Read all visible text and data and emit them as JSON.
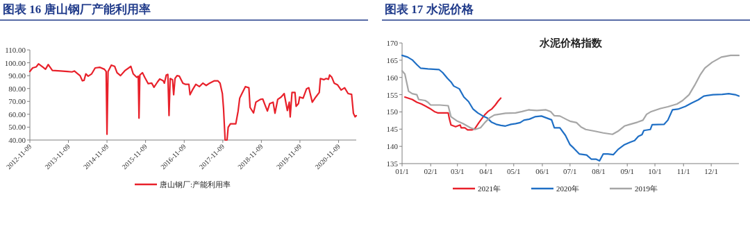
{
  "chart_data": [
    {
      "type": "line",
      "title": "图表 16  唐山钢厂产能利用率",
      "legend": "bottom",
      "grid": false,
      "line_style": "solid",
      "x": [
        "2012-11-09",
        "2012-12-05",
        "2013-01-08",
        "2013-01-30",
        "2013-03-15",
        "2013-04-06",
        "2013-05-02",
        "2013-06-10",
        "2013-08-26",
        "2013-10-30",
        "2013-12-13",
        "2014-01-04",
        "2014-02-06",
        "2014-02-27",
        "2014-03-21",
        "2014-04-06",
        "2014-04-23",
        "2014-05-15",
        "2014-06-17",
        "2014-07-20",
        "2014-09-01",
        "2014-10-15",
        "2014-11-01",
        "2014-11-09",
        "2014-11-19",
        "2014-12-20",
        "2015-01-21",
        "2015-02-12",
        "2015-03-17",
        "2015-04-30",
        "2015-06-23",
        "2015-07-15",
        "2015-08-17",
        "2015-09-01",
        "2015-09-08",
        "2015-09-16",
        "2015-10-11",
        "2015-11-01",
        "2015-12-04",
        "2016-01-06",
        "2016-01-28",
        "2016-03-01",
        "2016-03-22",
        "2016-04-24",
        "2016-05-05",
        "2016-05-23",
        "2016-06-07",
        "2016-06-18",
        "2016-06-29",
        "2016-07-21",
        "2016-08-01",
        "2016-08-14",
        "2016-09-02",
        "2016-09-24",
        "2016-10-27",
        "2016-11-18",
        "2016-12-23",
        "2017-01-03",
        "2017-01-25",
        "2017-02-27",
        "2017-04-01",
        "2017-05-04",
        "2017-06-05",
        "2017-07-08",
        "2017-08-21",
        "2017-09-23",
        "2017-10-14",
        "2017-11-05",
        "2017-11-16",
        "2017-12-01",
        "2017-12-19",
        "2017-12-30",
        "2018-01-20",
        "2018-03-12",
        "2018-04-03",
        "2018-04-18",
        "2018-05-09",
        "2018-06-11",
        "2018-07-14",
        "2018-07-25",
        "2018-08-27",
        "2018-09-18",
        "2018-10-31",
        "2018-11-22",
        "2018-12-14",
        "2019-01-05",
        "2019-01-27",
        "2019-02-28",
        "2019-03-18",
        "2019-04-13",
        "2019-05-15",
        "2019-06-13",
        "2019-07-13",
        "2019-07-31",
        "2019-08-09",
        "2019-08-26",
        "2019-09-23",
        "2019-10-04",
        "2019-10-26",
        "2019-11-06",
        "2019-12-09",
        "2020-01-10",
        "2020-02-01",
        "2020-03-05",
        "2020-04-07",
        "2020-05-10",
        "2020-05-21",
        "2020-06-22",
        "2020-07-14",
        "2020-08-05",
        "2020-08-16",
        "2020-09-06",
        "2020-09-28",
        "2020-10-31",
        "2020-12-03",
        "2021-01-05",
        "2021-02-07",
        "2021-03-12",
        "2021-03-29",
        "2021-04-14",
        "2021-04-25"
      ],
      "series": [
        {
          "name": "唐山钢厂:产能利用率",
          "color": "#e8202a",
          "values": [
            93.2,
            96,
            96.8,
            99.2,
            96.5,
            95,
            98.6,
            94.1,
            93.6,
            93.2,
            92.9,
            93.6,
            91.4,
            90,
            86,
            86.4,
            91.4,
            89.6,
            91.4,
            96,
            96.5,
            95,
            93.2,
            44.5,
            93.2,
            98.2,
            97.2,
            92.3,
            90,
            94.1,
            97.2,
            91.4,
            88.7,
            89.6,
            57,
            90.5,
            92.3,
            88.7,
            83.8,
            84.2,
            81,
            85.1,
            87.4,
            86,
            84.2,
            90.5,
            91,
            59,
            87.8,
            86.9,
            75.2,
            87.8,
            90,
            89.6,
            84.2,
            83.3,
            83.3,
            75.2,
            78.8,
            83.3,
            81.5,
            84.2,
            82.4,
            84.2,
            86,
            86,
            84.2,
            76.1,
            64.4,
            40,
            40,
            49.9,
            52.6,
            52.6,
            62.5,
            72.5,
            76.1,
            81.5,
            80.6,
            65.3,
            61.1,
            69.4,
            71.6,
            71.9,
            67.1,
            62.5,
            68.3,
            69.4,
            60.8,
            71.6,
            73.4,
            76.1,
            62.9,
            69.4,
            58,
            77,
            77,
            66.2,
            68.3,
            73.4,
            72.5,
            79.7,
            80.6,
            69.4,
            73.4,
            77,
            87.8,
            86.9,
            87.8,
            87.2,
            90.5,
            88.7,
            84.2,
            82.8,
            78.8,
            80.6,
            76.1,
            75.5,
            60.8,
            58,
            58.9
          ]
        }
      ],
      "xlim": [
        "2012-11-09",
        "2021-04-25"
      ],
      "xticks": [
        "2012-11-09",
        "2013-11-09",
        "2014-11-09",
        "2015-11-09",
        "2016-11-09",
        "2017-11-09",
        "2018-11-09",
        "2019-11-09",
        "2020-11-09"
      ],
      "ylim": [
        40,
        110
      ],
      "yticks": [
        {
          "value": 40,
          "label": "40.00"
        },
        {
          "value": 50,
          "label": "50.00"
        },
        {
          "value": 60,
          "label": "60.00"
        },
        {
          "value": 70,
          "label": "70.00"
        },
        {
          "value": 80,
          "label": "80.00"
        },
        {
          "value": 90,
          "label": "90.00"
        },
        {
          "value": 100,
          "label": "100.00"
        },
        {
          "value": 110,
          "label": "110.00"
        }
      ]
    },
    {
      "type": "line",
      "title": "图表 17  水泥价格",
      "subtitle": "水泥价格指数",
      "legend": "bottom",
      "grid": false,
      "line_style": "solid",
      "series": [
        {
          "name": "2021年",
          "color": "#e8202a",
          "x": [
            "--01-04",
            "--01-12",
            "--01-17",
            "--01-22",
            "--01-27",
            "--01-31",
            "--02-05",
            "--02-09",
            "--02-20",
            "--02-21",
            "--02-23",
            "--02-28",
            "--03-04",
            "--03-05",
            "--03-09",
            "--03-12",
            "--03-17",
            "--03-20",
            "--03-24",
            "--03-27",
            "--03-31",
            "--04-03",
            "--04-07",
            "--04-11",
            "--04-14",
            "--04-17"
          ],
          "values": [
            154.3,
            153.6,
            152.8,
            152.3,
            151.6,
            151,
            150.1,
            149.7,
            149.7,
            148.3,
            146.2,
            145.7,
            146.2,
            145.4,
            145.4,
            144.8,
            144.8,
            145.2,
            146.8,
            147.9,
            149.3,
            150.1,
            150.8,
            152,
            153.1,
            154
          ]
        },
        {
          "name": "2020年",
          "color": "#1f6fc5",
          "x": [
            "--01-01",
            "--01-07",
            "--01-12",
            "--01-17",
            "--01-21",
            "--01-29",
            "--02-10",
            "--02-14",
            "--02-19",
            "--02-23",
            "--02-26",
            "--03-03",
            "--03-08",
            "--03-13",
            "--03-18",
            "--03-23",
            "--03-28",
            "--04-02",
            "--04-07",
            "--04-12",
            "--04-17",
            "--04-22",
            "--04-28",
            "--05-03",
            "--05-08",
            "--05-12",
            "--05-18",
            "--05-24",
            "--05-31",
            "--06-05",
            "--06-11",
            "--06-14",
            "--06-20",
            "--06-26",
            "--07-01",
            "--07-05",
            "--07-11",
            "--07-19",
            "--07-24",
            "--07-29",
            "--08-02",
            "--08-06",
            "--08-11",
            "--08-17",
            "--08-22",
            "--08-29",
            "--09-04",
            "--09-09",
            "--09-13",
            "--09-17",
            "--09-19",
            "--09-26",
            "--09-28",
            "--10-11",
            "--10-15",
            "--10-20",
            "--10-26",
            "--11-03",
            "--11-10",
            "--11-17",
            "--11-23",
            "--12-03",
            "--12-13",
            "--12-20",
            "--12-27",
            "--12-31"
          ],
          "values": [
            166.4,
            165.9,
            165.1,
            163.7,
            162.7,
            162.5,
            162.3,
            161.4,
            159.8,
            158.7,
            157.5,
            156.7,
            154.3,
            153,
            150.8,
            149.7,
            148.9,
            148.3,
            147,
            146.4,
            146.1,
            145.9,
            146.4,
            146.6,
            146.9,
            147.6,
            147.9,
            148.6,
            148.8,
            148.3,
            147.7,
            145.4,
            145.4,
            143.2,
            140.5,
            139.5,
            137.8,
            137.5,
            136.3,
            136.3,
            135.8,
            137.8,
            137.8,
            137.6,
            139.1,
            140.5,
            141.2,
            141.7,
            142.9,
            143.4,
            144.6,
            144.9,
            146.3,
            146.4,
            147.6,
            150.6,
            150.8,
            151.6,
            152.6,
            153.5,
            154.6,
            155,
            155.1,
            155.3,
            155,
            154.6
          ]
        },
        {
          "name": "2019年",
          "color": "#a6a6a6",
          "x": [
            "--01-01",
            "--01-04",
            "--01-08",
            "--01-12",
            "--01-17",
            "--01-19",
            "--01-26",
            "--01-29",
            "--02-01",
            "--02-11",
            "--02-20",
            "--02-23",
            "--03-01",
            "--03-07",
            "--03-15",
            "--03-20",
            "--03-26",
            "--03-31",
            "--04-05",
            "--04-10",
            "--04-15",
            "--04-22",
            "--05-03",
            "--05-10",
            "--05-17",
            "--05-26",
            "--06-05",
            "--06-10",
            "--06-14",
            "--06-20",
            "--06-28",
            "--07-01",
            "--07-08",
            "--07-13",
            "--07-18",
            "--07-28",
            "--08-06",
            "--08-16",
            "--08-22",
            "--08-29",
            "--09-04",
            "--09-12",
            "--09-18",
            "--09-22",
            "--09-27",
            "--10-07",
            "--10-15",
            "--10-25",
            "--10-31",
            "--11-07",
            "--11-13",
            "--11-19",
            "--11-24",
            "--12-02",
            "--12-12",
            "--12-22",
            "--12-31"
          ],
          "values": [
            161.9,
            161,
            156,
            155.3,
            155,
            153.6,
            153.3,
            152.8,
            152,
            152,
            151.8,
            148.6,
            147.3,
            146.6,
            145.4,
            144.9,
            145.4,
            147,
            148.3,
            149.1,
            149.3,
            149.6,
            149.7,
            150.1,
            150.6,
            150.4,
            150.6,
            150.1,
            148.9,
            148.8,
            147.7,
            147.3,
            146.9,
            145.6,
            144.9,
            144.4,
            143.9,
            143.5,
            144.4,
            145.9,
            146.4,
            147,
            147.6,
            149.3,
            150.1,
            151,
            151.5,
            152.3,
            153.3,
            155,
            157.7,
            160.7,
            162.7,
            164.4,
            165.9,
            166.4,
            166.4
          ]
        }
      ],
      "xlim": [
        "--01-01",
        "--12-31"
      ],
      "xticks": [
        {
          "value": "--01-01",
          "label": "01/1"
        },
        {
          "value": "--02-01",
          "label": "02/1"
        },
        {
          "value": "--03-01",
          "label": "03/1"
        },
        {
          "value": "--04-01",
          "label": "04/1"
        },
        {
          "value": "--05-01",
          "label": "05/1"
        },
        {
          "value": "--06-01",
          "label": "06/1"
        },
        {
          "value": "--07-01",
          "label": "07/1"
        },
        {
          "value": "--08-01",
          "label": "08/1"
        },
        {
          "value": "--09-01",
          "label": "09/1"
        },
        {
          "value": "--10-01",
          "label": "10/1"
        },
        {
          "value": "--11-01",
          "label": "11/1"
        },
        {
          "value": "--12-01",
          "label": "12/1"
        }
      ],
      "ylim": [
        135,
        170
      ],
      "yticks": [
        135,
        140,
        145,
        150,
        155,
        160,
        165,
        170
      ]
    }
  ]
}
